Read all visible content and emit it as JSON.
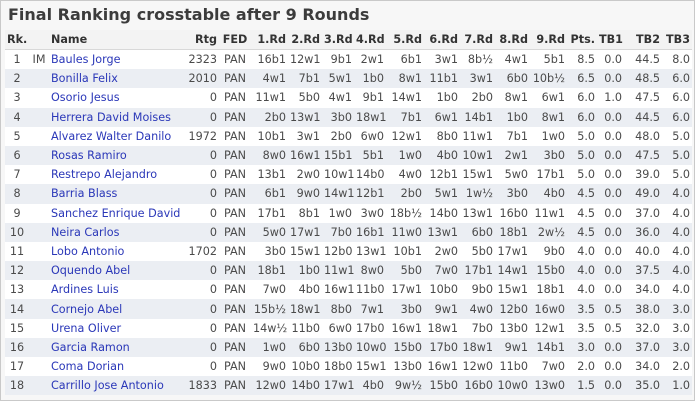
{
  "title": "Final Ranking crosstable after 9 Rounds",
  "columns": [
    "Rk.",
    "",
    "Name",
    "Rtg",
    "FED",
    "1.Rd",
    "2.Rd",
    "3.Rd",
    "4.Rd",
    "5.Rd",
    "6.Rd",
    "7.Rd",
    "8.Rd",
    "9.Rd",
    "Pts.",
    "TB1",
    "TB2",
    "TB3"
  ],
  "rows": [
    [
      "1",
      "IM",
      "Baules Jorge",
      "2323",
      "PAN",
      "16b1",
      "12w1",
      "9b1",
      "2w1",
      "6b1",
      "3w1",
      "8b½",
      "4w1",
      "5b1",
      "8.5",
      "0.0",
      "44.5",
      "8.0"
    ],
    [
      "2",
      "",
      "Bonilla Felix",
      "2010",
      "PAN",
      "4w1",
      "7b1",
      "5w1",
      "1b0",
      "8w1",
      "11b1",
      "3w1",
      "6b0",
      "10b½",
      "6.5",
      "0.0",
      "48.5",
      "6.0"
    ],
    [
      "3",
      "",
      "Osorio Jesus",
      "0",
      "PAN",
      "11w1",
      "5b0",
      "4w1",
      "9b1",
      "14w1",
      "1b0",
      "2b0",
      "8w1",
      "6w1",
      "6.0",
      "1.0",
      "47.5",
      "6.0"
    ],
    [
      "4",
      "",
      "Herrera David Moises",
      "0",
      "PAN",
      "2b0",
      "13w1",
      "3b0",
      "18w1",
      "7b1",
      "6w1",
      "14b1",
      "1b0",
      "8w1",
      "6.0",
      "0.0",
      "44.5",
      "6.0"
    ],
    [
      "5",
      "",
      "Alvarez Walter Danilo",
      "1972",
      "PAN",
      "10b1",
      "3w1",
      "2b0",
      "6w0",
      "12w1",
      "8b0",
      "11w1",
      "7b1",
      "1w0",
      "5.0",
      "0.0",
      "48.0",
      "5.0"
    ],
    [
      "6",
      "",
      "Rosas Ramiro",
      "0",
      "PAN",
      "8w0",
      "16w1",
      "15b1",
      "5b1",
      "1w0",
      "4b0",
      "10w1",
      "2w1",
      "3b0",
      "5.0",
      "0.0",
      "47.5",
      "5.0"
    ],
    [
      "7",
      "",
      "Restrepo Alejandro",
      "0",
      "PAN",
      "13b1",
      "2w0",
      "10w1",
      "14b0",
      "4w0",
      "12b1",
      "15w1",
      "5w0",
      "17b1",
      "5.0",
      "0.0",
      "39.0",
      "5.0"
    ],
    [
      "8",
      "",
      "Barria Blass",
      "0",
      "PAN",
      "6b1",
      "9w0",
      "14w1",
      "12b1",
      "2b0",
      "5w1",
      "1w½",
      "3b0",
      "4b0",
      "4.5",
      "0.0",
      "49.0",
      "4.0"
    ],
    [
      "9",
      "",
      "Sanchez Enrique David",
      "0",
      "PAN",
      "17b1",
      "8b1",
      "1w0",
      "3w0",
      "18b½",
      "14b0",
      "13w1",
      "16b0",
      "11w1",
      "4.5",
      "0.0",
      "37.0",
      "4.0"
    ],
    [
      "10",
      "",
      "Neira Carlos",
      "0",
      "PAN",
      "5w0",
      "17w1",
      "7b0",
      "16b1",
      "11w0",
      "13w1",
      "6b0",
      "18b1",
      "2w½",
      "4.5",
      "0.0",
      "36.0",
      "4.0"
    ],
    [
      "11",
      "",
      "Lobo Antonio",
      "1702",
      "PAN",
      "3b0",
      "15w1",
      "12b0",
      "13w1",
      "10b1",
      "2w0",
      "5b0",
      "17w1",
      "9b0",
      "4.0",
      "0.0",
      "40.0",
      "4.0"
    ],
    [
      "12",
      "",
      "Oquendo Abel",
      "0",
      "PAN",
      "18b1",
      "1b0",
      "11w1",
      "8w0",
      "5b0",
      "7w0",
      "17b1",
      "14w1",
      "15b0",
      "4.0",
      "0.0",
      "37.5",
      "4.0"
    ],
    [
      "13",
      "",
      "Ardines Luis",
      "0",
      "PAN",
      "7w0",
      "4b0",
      "16w1",
      "11b0",
      "17w1",
      "10b0",
      "9b0",
      "15w1",
      "18b1",
      "4.0",
      "0.0",
      "34.0",
      "4.0"
    ],
    [
      "14",
      "",
      "Cornejo Abel",
      "0",
      "PAN",
      "15b½",
      "18w1",
      "8b0",
      "7w1",
      "3b0",
      "9w1",
      "4w0",
      "12b0",
      "16w0",
      "3.5",
      "0.5",
      "38.0",
      "3.0"
    ],
    [
      "15",
      "",
      "Urena Oliver",
      "0",
      "PAN",
      "14w½",
      "11b0",
      "6w0",
      "17b0",
      "16w1",
      "18w1",
      "7b0",
      "13b0",
      "12w1",
      "3.5",
      "0.5",
      "32.0",
      "3.0"
    ],
    [
      "16",
      "",
      "Garcia Ramon",
      "0",
      "PAN",
      "1w0",
      "6b0",
      "13b0",
      "10w0",
      "15b0",
      "17b0",
      "18w1",
      "9w1",
      "14b1",
      "3.0",
      "0.0",
      "37.0",
      "3.0"
    ],
    [
      "17",
      "",
      "Coma Dorian",
      "0",
      "PAN",
      "9w0",
      "10b0",
      "18b0",
      "15w1",
      "13b0",
      "16w1",
      "12w0",
      "11b0",
      "7w0",
      "2.0",
      "0.0",
      "34.0",
      "2.0"
    ],
    [
      "18",
      "",
      "Carrillo Jose Antonio",
      "1833",
      "PAN",
      "12w0",
      "14b0",
      "17w1",
      "4b0",
      "9w½",
      "15b0",
      "16b0",
      "10w0",
      "13w0",
      "1.5",
      "0.0",
      "35.0",
      "1.0"
    ]
  ]
}
